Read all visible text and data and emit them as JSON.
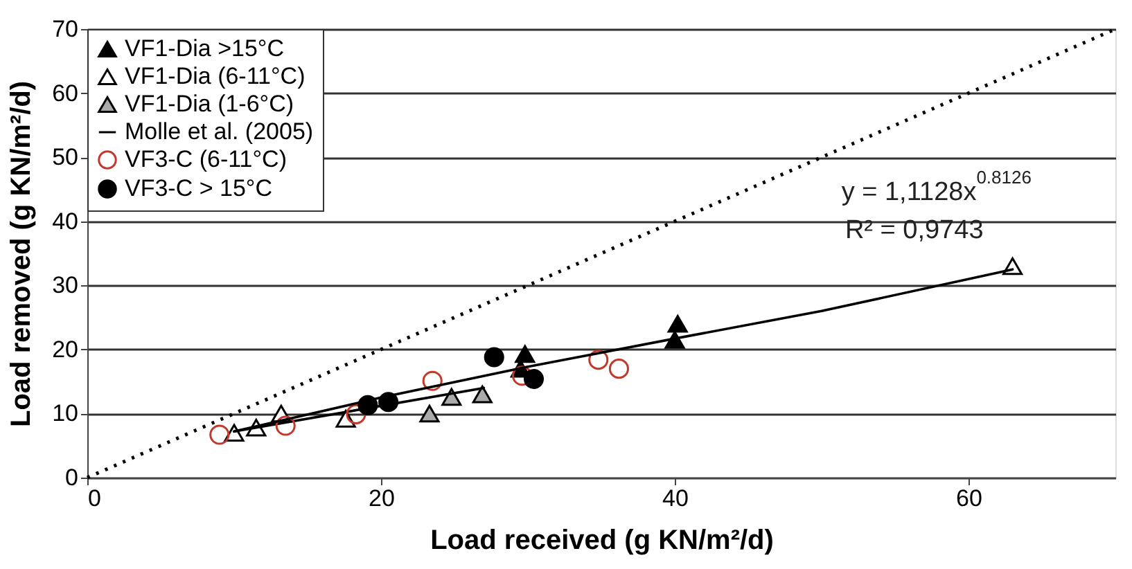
{
  "chart_data": {
    "type": "scatter",
    "xlabel": "Load received (g KN/m²/d)",
    "ylabel": "Load removed (g KN/m²/d)",
    "xlim": [
      0,
      70
    ],
    "ylim": [
      0,
      70
    ],
    "xticks": [
      0,
      20,
      40,
      60
    ],
    "yticks": [
      0,
      10,
      20,
      30,
      40,
      50,
      60,
      70
    ],
    "grid": "y",
    "legend": "top left",
    "series": [
      {
        "name": "VF1-Dia >15°C",
        "marker": "triangle",
        "color": "#000000",
        "x": [
          40.2,
          40,
          29.8,
          29.5
        ],
        "values": [
          24,
          21.5,
          19.3,
          17
        ]
      },
      {
        "name": "VF1-Dia (6-11°C)",
        "marker": "triangle",
        "color": "#ffffff",
        "x": [
          63,
          10,
          11.5,
          13.2,
          17.6
        ],
        "values": [
          33,
          7,
          7.8,
          10,
          9.2
        ]
      },
      {
        "name": "VF1-Dia (1-6°C)",
        "marker": "triangle",
        "color": "#aaaaaa",
        "x": [
          23.3,
          24.8,
          26.9
        ],
        "values": [
          10,
          12.6,
          13
        ]
      },
      {
        "name": "Molle et al. (2005)",
        "type": "line",
        "line_style": "solid",
        "color": "#000000",
        "x": [
          10,
          27
        ],
        "values": [
          7.2,
          14
        ]
      },
      {
        "name": "VF3-C (6-11°C)",
        "marker": "circle",
        "color": "#c0392b",
        "x": [
          9,
          13.5,
          18.3,
          23.5,
          29.6,
          34.8,
          36.2
        ],
        "values": [
          6.7,
          8.1,
          9.9,
          15.1,
          15.9,
          18.4,
          17
        ]
      },
      {
        "name": "VF3-C > 15°C",
        "marker": "circle",
        "color": "#000000",
        "x": [
          19.1,
          20.5,
          27.7,
          30.4
        ],
        "values": [
          11.3,
          11.8,
          18.8,
          15.4
        ]
      },
      {
        "type": "line",
        "line_style": "solid",
        "color": "#000000",
        "x": [
          10,
          20,
          30,
          40,
          50,
          63
        ],
        "values": [
          7.2,
          12.5,
          17.3,
          21.7,
          26,
          32.5
        ]
      },
      {
        "type": "line",
        "line_style": "dotted",
        "color": "#000000",
        "x": [
          0,
          70
        ],
        "values": [
          0,
          70
        ]
      }
    ],
    "annotations": [
      "y = 1,1128x$^{0.8126}$",
      "R² = 0,9743"
    ]
  }
}
